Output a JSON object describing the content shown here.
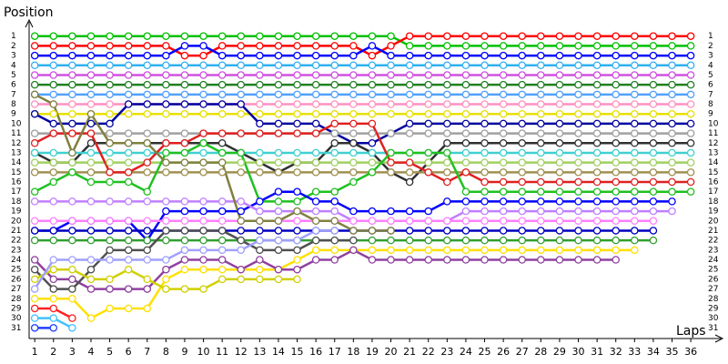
{
  "chart_data": {
    "type": "lap",
    "y_label": "Position",
    "x_label": "Laps",
    "x": [
      1,
      2,
      3,
      4,
      5,
      6,
      7,
      8,
      9,
      10,
      11,
      12,
      13,
      14,
      15,
      16,
      17,
      18,
      19,
      20,
      21,
      22,
      23,
      24,
      25,
      26,
      27,
      28,
      29,
      30,
      31,
      32,
      33,
      34,
      35,
      36
    ],
    "xticks": [
      1,
      2,
      3,
      4,
      5,
      6,
      7,
      8,
      9,
      10,
      11,
      12,
      13,
      14,
      15,
      16,
      17,
      18,
      19,
      20,
      21,
      22,
      23,
      24,
      25,
      26,
      27,
      28,
      29,
      30,
      31,
      32,
      33,
      34,
      35,
      36
    ],
    "yticks": [
      1,
      2,
      3,
      4,
      5,
      6,
      7,
      8,
      9,
      10,
      11,
      12,
      13,
      14,
      15,
      16,
      17,
      18,
      19,
      20,
      21,
      22,
      23,
      24,
      25,
      26,
      27,
      28,
      29,
      30,
      31
    ],
    "xlim": [
      0.7,
      37.5
    ],
    "ylim": [
      0,
      32
    ],
    "series": [
      {
        "color": "#00c000",
        "values": [
          1,
          1,
          1,
          1,
          1,
          1,
          1,
          1,
          1,
          1,
          1,
          1,
          1,
          1,
          1,
          1,
          1,
          1,
          1,
          1,
          2,
          2,
          2,
          2,
          2,
          2,
          2,
          2,
          2,
          2,
          2,
          2,
          2,
          2,
          2,
          2
        ]
      },
      {
        "color": "#ff0000",
        "values": [
          2,
          2,
          2,
          2,
          2,
          2,
          2,
          2,
          3,
          3,
          2,
          2,
          2,
          2,
          2,
          2,
          2,
          2,
          3,
          2,
          1,
          1,
          1,
          1,
          1,
          1,
          1,
          1,
          1,
          1,
          1,
          1,
          1,
          1,
          1,
          1
        ]
      },
      {
        "color": "#0000ff",
        "values": [
          3,
          3,
          3,
          3,
          3,
          3,
          3,
          3,
          2,
          2,
          3,
          3,
          3,
          3,
          3,
          3,
          3,
          3,
          2,
          3,
          3,
          3,
          3,
          3,
          3,
          3,
          3,
          3,
          3,
          3,
          3,
          3,
          3,
          3,
          3,
          3
        ]
      },
      {
        "color": "#30b0f0",
        "values": [
          4,
          4,
          4,
          4,
          4,
          4,
          4,
          4,
          4,
          4,
          4,
          4,
          4,
          4,
          4,
          4,
          4,
          4,
          4,
          4,
          4,
          4,
          4,
          4,
          4,
          4,
          4,
          4,
          4,
          4,
          4,
          4,
          4,
          4,
          4,
          4
        ]
      },
      {
        "color": "#d050e0",
        "values": [
          5,
          5,
          5,
          5,
          5,
          5,
          5,
          5,
          5,
          5,
          5,
          5,
          5,
          5,
          5,
          5,
          5,
          5,
          5,
          5,
          5,
          5,
          5,
          5,
          5,
          5,
          5,
          5,
          5,
          5,
          5,
          5,
          5,
          5,
          5,
          5
        ]
      },
      {
        "color": "#208020",
        "values": [
          6,
          6,
          6,
          6,
          6,
          6,
          6,
          6,
          6,
          6,
          6,
          6,
          6,
          6,
          6,
          6,
          6,
          6,
          6,
          6,
          6,
          6,
          6,
          6,
          6,
          6,
          6,
          6,
          6,
          6,
          6,
          6,
          6,
          6,
          6,
          6
        ]
      },
      {
        "color": "#50a0ff",
        "values": [
          7,
          7,
          7,
          7,
          7,
          7,
          7,
          7,
          7,
          7,
          7,
          7,
          7,
          7,
          7,
          7,
          7,
          7,
          7,
          7,
          7,
          7,
          7,
          7,
          7,
          7,
          7,
          7,
          7,
          7,
          7,
          7,
          7,
          7,
          7,
          7
        ]
      },
      {
        "color": "#ff90c0",
        "values": [
          8,
          8,
          8,
          8,
          8,
          8,
          8,
          8,
          8,
          8,
          8,
          8,
          8,
          8,
          8,
          8,
          8,
          8,
          8,
          8,
          8,
          8,
          8,
          8,
          8,
          8,
          8,
          8,
          8,
          8,
          8,
          8,
          8,
          8,
          8,
          8
        ]
      },
      {
        "color": "#e8e000",
        "values": [
          9,
          9,
          9,
          9,
          9,
          9,
          9,
          9,
          9,
          9,
          9,
          9,
          9,
          9,
          9,
          9,
          9,
          9,
          9,
          9,
          9,
          9,
          9,
          9,
          9,
          9,
          9,
          9,
          9,
          9,
          9,
          9,
          9,
          9,
          9,
          9
        ]
      },
      {
        "color": "#0000a0",
        "values": [
          9,
          10,
          10,
          10,
          10,
          8,
          8,
          8,
          8,
          8,
          8,
          8,
          10,
          10,
          10,
          10,
          11,
          12,
          12,
          11,
          10,
          10,
          10,
          10,
          10,
          10,
          10,
          10,
          10,
          10,
          10,
          10,
          10,
          10,
          10,
          10
        ]
      },
      {
        "color": "#a0a0a0",
        "values": [
          11,
          11,
          11,
          11,
          11,
          11,
          11,
          11,
          11,
          11,
          11,
          11,
          11,
          11,
          11,
          11,
          11,
          11,
          11,
          11,
          11,
          11,
          11,
          11,
          11,
          11,
          11,
          11,
          11,
          11,
          11,
          11,
          11,
          11,
          11,
          11
        ]
      },
      {
        "color": "#303030",
        "values": [
          13,
          14,
          14,
          12,
          12,
          12,
          12,
          12,
          12,
          12,
          12,
          13,
          14,
          15,
          14,
          14,
          12,
          12,
          13,
          15,
          16,
          14,
          12,
          12,
          12,
          12,
          12,
          12,
          12,
          12,
          12,
          12,
          12,
          12,
          12,
          12
        ]
      },
      {
        "color": "#40d0d0",
        "values": [
          13,
          13,
          13,
          13,
          13,
          13,
          13,
          13,
          13,
          13,
          13,
          13,
          13,
          13,
          13,
          13,
          13,
          13,
          13,
          13,
          13,
          13,
          13,
          13,
          13,
          13,
          13,
          13,
          13,
          13,
          13,
          13,
          13,
          13,
          13,
          13
        ]
      },
      {
        "color": "#a0d060",
        "values": [
          14,
          14,
          14,
          14,
          14,
          14,
          14,
          14,
          14,
          14,
          14,
          14,
          14,
          14,
          14,
          14,
          14,
          14,
          14,
          14,
          14,
          14,
          14,
          14,
          14,
          14,
          14,
          14,
          14,
          14,
          14,
          14,
          14,
          14,
          14,
          14
        ]
      },
      {
        "color": "#a09050",
        "values": [
          15,
          15,
          15,
          15,
          15,
          15,
          15,
          15,
          15,
          15,
          15,
          15,
          15,
          15,
          15,
          15,
          15,
          15,
          15,
          15,
          15,
          15,
          15,
          15,
          15,
          15,
          15,
          15,
          15,
          15,
          15,
          15,
          15,
          15,
          15,
          15
        ]
      },
      {
        "color": "#e02020",
        "values": [
          12,
          11,
          11,
          11,
          15,
          15,
          14,
          12,
          12,
          11,
          11,
          11,
          11,
          11,
          11,
          11,
          10,
          10,
          10,
          14,
          14,
          15,
          16,
          15,
          16,
          16,
          16,
          16,
          16,
          16,
          16,
          16,
          16,
          16,
          16,
          16
        ]
      },
      {
        "color": "#20c020",
        "values": [
          17,
          16,
          15,
          16,
          16,
          16,
          17,
          13,
          13,
          12,
          13,
          13,
          18,
          18,
          18,
          17,
          17,
          16,
          15,
          13,
          13,
          13,
          13,
          17,
          17,
          17,
          17,
          17,
          17,
          17,
          17,
          17,
          17,
          17,
          17,
          17
        ]
      },
      {
        "color": "#0000ff",
        "values": [
          21,
          21,
          20,
          20,
          20,
          20,
          22,
          19,
          19,
          19,
          19,
          19,
          18,
          17,
          17,
          18,
          18,
          19,
          19,
          19,
          19,
          19,
          18,
          18,
          18,
          18,
          18,
          18,
          18,
          18,
          18,
          18,
          18,
          18,
          18,
          null
        ]
      },
      {
        "color": "#c080ff",
        "values": [
          18,
          18,
          18,
          18,
          18,
          18,
          18,
          18,
          18,
          18,
          18,
          18,
          19,
          19,
          19,
          19,
          19,
          20,
          20,
          20,
          20,
          20,
          20,
          19,
          19,
          19,
          19,
          19,
          19,
          19,
          19,
          19,
          19,
          19,
          19,
          null
        ]
      },
      {
        "color": "#ff80ff",
        "values": [
          20,
          20,
          20,
          20,
          20,
          20,
          20,
          20,
          20,
          20,
          20,
          20,
          20,
          20,
          20,
          20,
          20,
          20,
          20,
          20,
          20,
          20,
          20,
          20,
          20,
          20,
          20,
          20,
          20,
          20,
          20,
          20,
          20,
          20,
          null,
          null
        ]
      },
      {
        "color": "#0000c0",
        "values": [
          21,
          21,
          21,
          21,
          21,
          21,
          21,
          21,
          21,
          21,
          21,
          21,
          21,
          21,
          21,
          21,
          21,
          21,
          21,
          21,
          21,
          21,
          21,
          21,
          21,
          21,
          21,
          21,
          21,
          21,
          21,
          21,
          21,
          21,
          null,
          null
        ]
      },
      {
        "color": "#30a030",
        "values": [
          22,
          22,
          22,
          22,
          22,
          22,
          22,
          22,
          22,
          22,
          22,
          22,
          22,
          22,
          22,
          22,
          22,
          22,
          22,
          22,
          22,
          22,
          22,
          22,
          22,
          22,
          22,
          22,
          22,
          22,
          22,
          22,
          22,
          22,
          null,
          null
        ]
      },
      {
        "color": "#ffe000",
        "values": [
          28,
          28,
          28,
          30,
          29,
          29,
          29,
          26,
          25,
          25,
          25,
          25,
          25,
          25,
          24,
          23,
          23,
          23,
          23,
          23,
          23,
          23,
          23,
          23,
          23,
          23,
          23,
          23,
          23,
          23,
          23,
          23,
          23,
          null,
          null,
          null
        ]
      },
      {
        "color": "#9040a0",
        "values": [
          24,
          26,
          26,
          27,
          27,
          27,
          27,
          25,
          24,
          24,
          24,
          25,
          24,
          25,
          25,
          24,
          24,
          23,
          24,
          24,
          24,
          24,
          24,
          24,
          24,
          24,
          24,
          24,
          24,
          24,
          24,
          24,
          null,
          null,
          null,
          null
        ]
      },
      {
        "color": "#808040",
        "values": [
          7,
          8,
          13,
          9,
          12,
          12,
          12,
          14,
          14,
          14,
          14,
          20,
          20,
          20,
          19,
          20,
          20,
          21,
          21,
          21,
          null,
          null,
          null,
          null,
          null,
          null,
          null,
          null,
          null,
          null,
          null,
          null,
          null,
          null,
          null,
          null
        ]
      },
      {
        "color": "#ff2020",
        "values": [
          29,
          29,
          30,
          null,
          null,
          null,
          null,
          null,
          null,
          null,
          null,
          null,
          null,
          null,
          null,
          null,
          null,
          null,
          null,
          null,
          null,
          null,
          null,
          null,
          null,
          null,
          null,
          null,
          null,
          null,
          null,
          null,
          null,
          null,
          null,
          null
        ]
      },
      {
        "color": "#40c0ff",
        "values": [
          30,
          30,
          31,
          null,
          null,
          null,
          null,
          null,
          null,
          null,
          null,
          null,
          null,
          null,
          null,
          null,
          null,
          null,
          null,
          null,
          null,
          null,
          null,
          null,
          null,
          null,
          null,
          null,
          null,
          null,
          null,
          null,
          null,
          null,
          null,
          null
        ]
      },
      {
        "color": "#2040ff",
        "values": [
          31,
          31,
          null,
          null,
          null,
          null,
          null,
          null,
          null,
          null,
          null,
          null,
          null,
          null,
          null,
          null,
          null,
          null,
          null,
          null,
          null,
          null,
          null,
          null,
          null,
          null,
          null,
          null,
          null,
          null,
          null,
          null,
          null,
          null,
          null,
          null
        ]
      },
      {
        "color": "#505050",
        "values": [
          25,
          27,
          27,
          25,
          23,
          23,
          23,
          21,
          21,
          21,
          21,
          22,
          23,
          23,
          23,
          22,
          22,
          22,
          null,
          null,
          null,
          null,
          null,
          null,
          null,
          null,
          null,
          null,
          null,
          null,
          null,
          null,
          null,
          null,
          null,
          null
        ]
      },
      {
        "color": "#d0d000",
        "values": [
          26,
          25,
          25,
          26,
          26,
          25,
          26,
          27,
          27,
          27,
          26,
          26,
          26,
          26,
          26,
          null,
          null,
          null,
          null,
          null,
          null,
          null,
          null,
          null,
          null,
          null,
          null,
          null,
          null,
          null,
          null,
          null,
          null,
          null,
          null,
          null
        ]
      },
      {
        "color": "#a0a0ff",
        "values": [
          27,
          24,
          24,
          24,
          24,
          24,
          24,
          24,
          23,
          23,
          23,
          23,
          22,
          22,
          22,
          21,
          21,
          null,
          null,
          null,
          null,
          null,
          null,
          null,
          null,
          null,
          null,
          null,
          null,
          null,
          null,
          null,
          null,
          null,
          null,
          null
        ]
      }
    ]
  }
}
